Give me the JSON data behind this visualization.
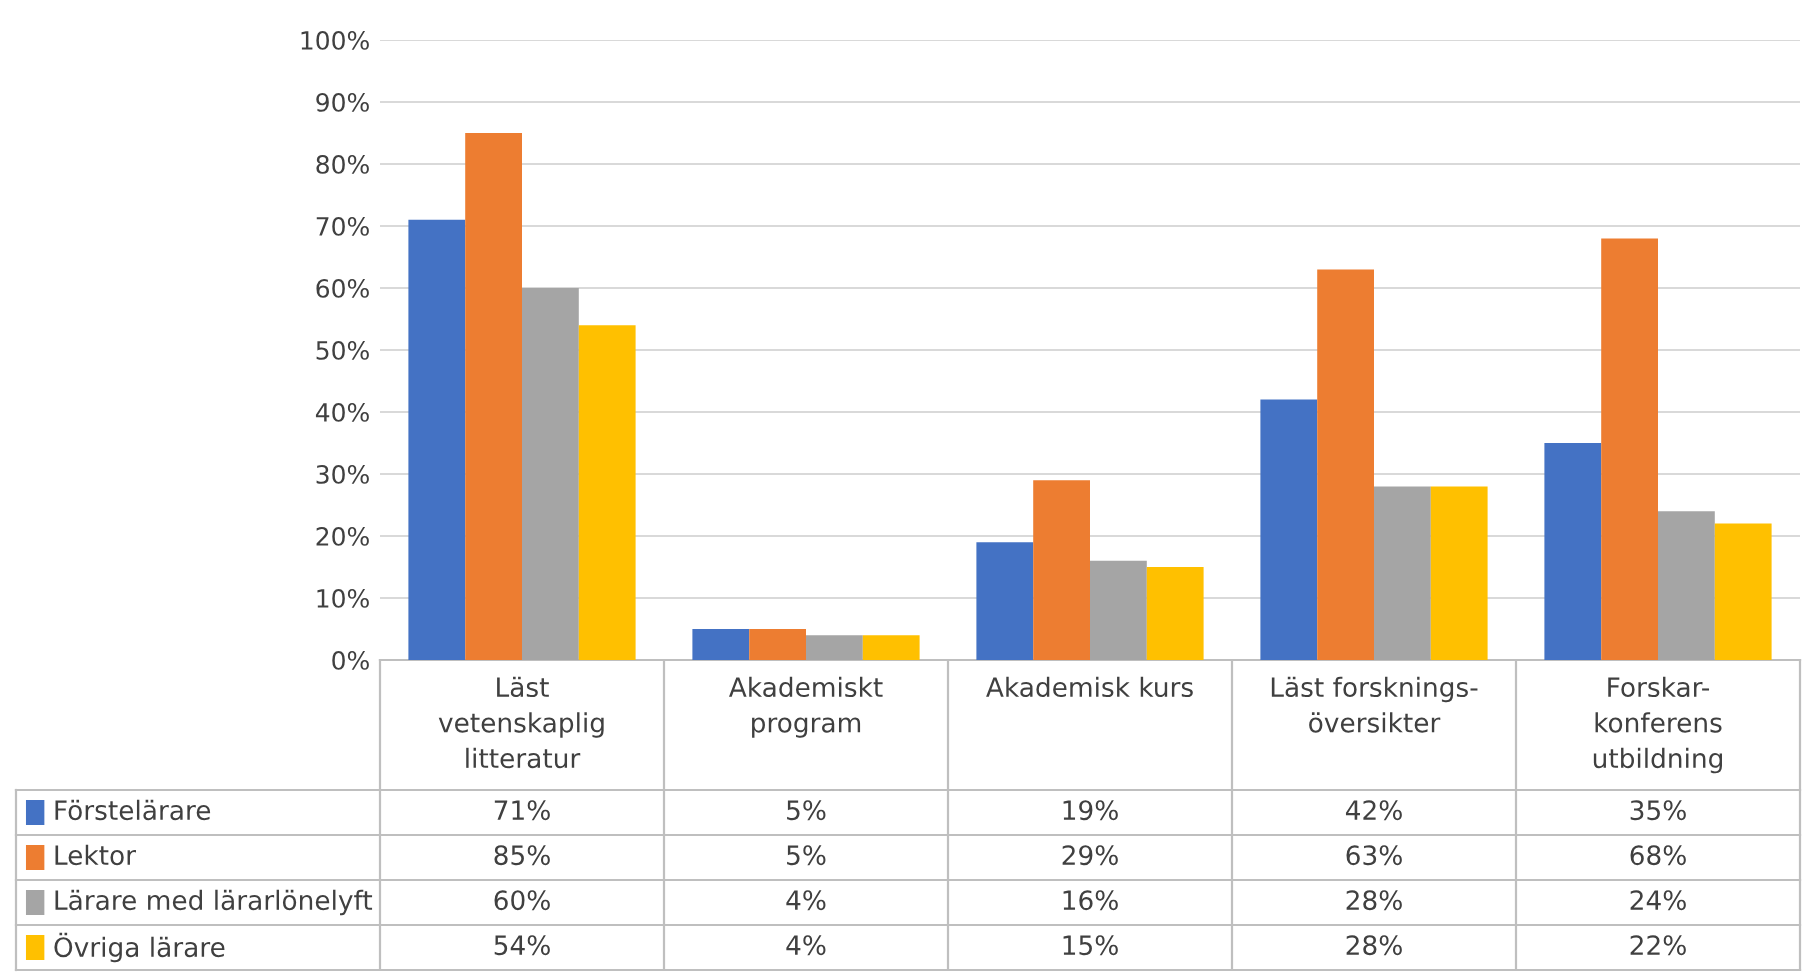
{
  "chart_data": {
    "type": "bar",
    "categories": [
      "Läst\nvetenskaplig\nlitteratur",
      "Akademiskt\nprogram",
      "Akademisk kurs",
      "Läst forsknings-\növersikter",
      "Forskar-\nkonferens\nutbildning"
    ],
    "series": [
      {
        "name": "Förstelärare",
        "color": "#4472c4",
        "values": [
          71,
          5,
          19,
          42,
          35
        ],
        "value_labels": [
          "71%",
          "5%",
          "19%",
          "42%",
          "35%"
        ]
      },
      {
        "name": "Lektor",
        "color": "#ed7d31",
        "values": [
          85,
          5,
          29,
          63,
          68
        ],
        "value_labels": [
          "85%",
          "5%",
          "29%",
          "63%",
          "68%"
        ]
      },
      {
        "name": "Lärare med lärarlönelyft",
        "color": "#a5a5a5",
        "values": [
          60,
          4,
          16,
          28,
          24
        ],
        "value_labels": [
          "60%",
          "4%",
          "16%",
          "28%",
          "24%"
        ]
      },
      {
        "name": "Övriga lärare",
        "color": "#ffc000",
        "values": [
          54,
          4,
          15,
          28,
          22
        ],
        "value_labels": [
          "54%",
          "4%",
          "15%",
          "28%",
          "22%"
        ]
      }
    ],
    "ylim": [
      0,
      100
    ],
    "yticks": [
      {
        "value": 0,
        "label": "0%"
      },
      {
        "value": 10,
        "label": "10%"
      },
      {
        "value": 20,
        "label": "20%"
      },
      {
        "value": 30,
        "label": "30%"
      },
      {
        "value": 40,
        "label": "40%"
      },
      {
        "value": 50,
        "label": "50%"
      },
      {
        "value": 60,
        "label": "60%"
      },
      {
        "value": 70,
        "label": "70%"
      },
      {
        "value": 80,
        "label": "80%"
      },
      {
        "value": 90,
        "label": "90%"
      },
      {
        "value": 100,
        "label": "100%"
      }
    ],
    "grid": "y",
    "legend": "bottom"
  }
}
